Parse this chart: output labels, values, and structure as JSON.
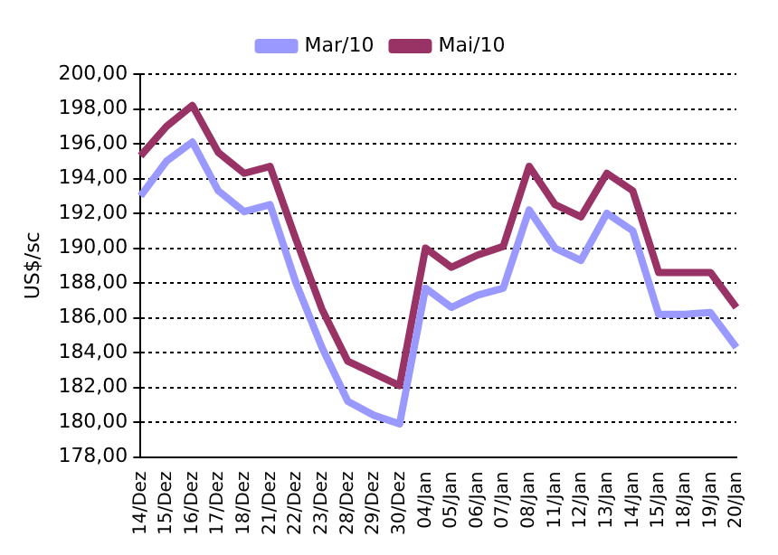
{
  "chart_data": {
    "type": "line",
    "ylabel": "US$/sc",
    "categories": [
      "14/Dez",
      "15/Dez",
      "16/Dez",
      "17/Dez",
      "18/Dez",
      "21/Dez",
      "22/Dez",
      "23/Dez",
      "28/Dez",
      "29/Dez",
      "30/Dez",
      "04/Jan",
      "05/Jan",
      "06/Jan",
      "07/Jan",
      "08/Jan",
      "11/Jan",
      "12/Jan",
      "13/Jan",
      "14/Jan",
      "15/Jan",
      "18/Jan",
      "19/Jan",
      "20/Jan"
    ],
    "series": [
      {
        "name": "Mar/10",
        "color": "#9999ff",
        "values": [
          193.0,
          195.0,
          196.1,
          193.3,
          192.1,
          192.5,
          188.0,
          184.3,
          181.2,
          180.4,
          179.9,
          187.7,
          186.6,
          187.3,
          187.7,
          192.2,
          190.0,
          189.3,
          192.0,
          191.0,
          186.2,
          186.2,
          186.3,
          184.3
        ]
      },
      {
        "name": "Mai/10",
        "color": "#993366",
        "values": [
          195.3,
          197.0,
          198.2,
          195.5,
          194.3,
          194.7,
          190.5,
          186.5,
          183.5,
          182.8,
          182.1,
          190.0,
          188.9,
          189.6,
          190.1,
          194.7,
          192.5,
          191.8,
          194.3,
          193.3,
          188.6,
          188.6,
          188.6,
          186.6
        ]
      }
    ],
    "ylim": [
      178,
      200
    ],
    "yticks": [
      {
        "value": 178,
        "label": "178,00"
      },
      {
        "value": 180,
        "label": "180,00"
      },
      {
        "value": 182,
        "label": "182,00"
      },
      {
        "value": 184,
        "label": "184,00"
      },
      {
        "value": 186,
        "label": "186,00"
      },
      {
        "value": 188,
        "label": "188,00"
      },
      {
        "value": 190,
        "label": "190,00"
      },
      {
        "value": 192,
        "label": "192,00"
      },
      {
        "value": 194,
        "label": "194,00"
      },
      {
        "value": 196,
        "label": "196,00"
      },
      {
        "value": 198,
        "label": "198,00"
      },
      {
        "value": 200,
        "label": "200,00"
      }
    ],
    "grid": "y",
    "legend": "top",
    "marker": "none",
    "line_style": "solid"
  }
}
